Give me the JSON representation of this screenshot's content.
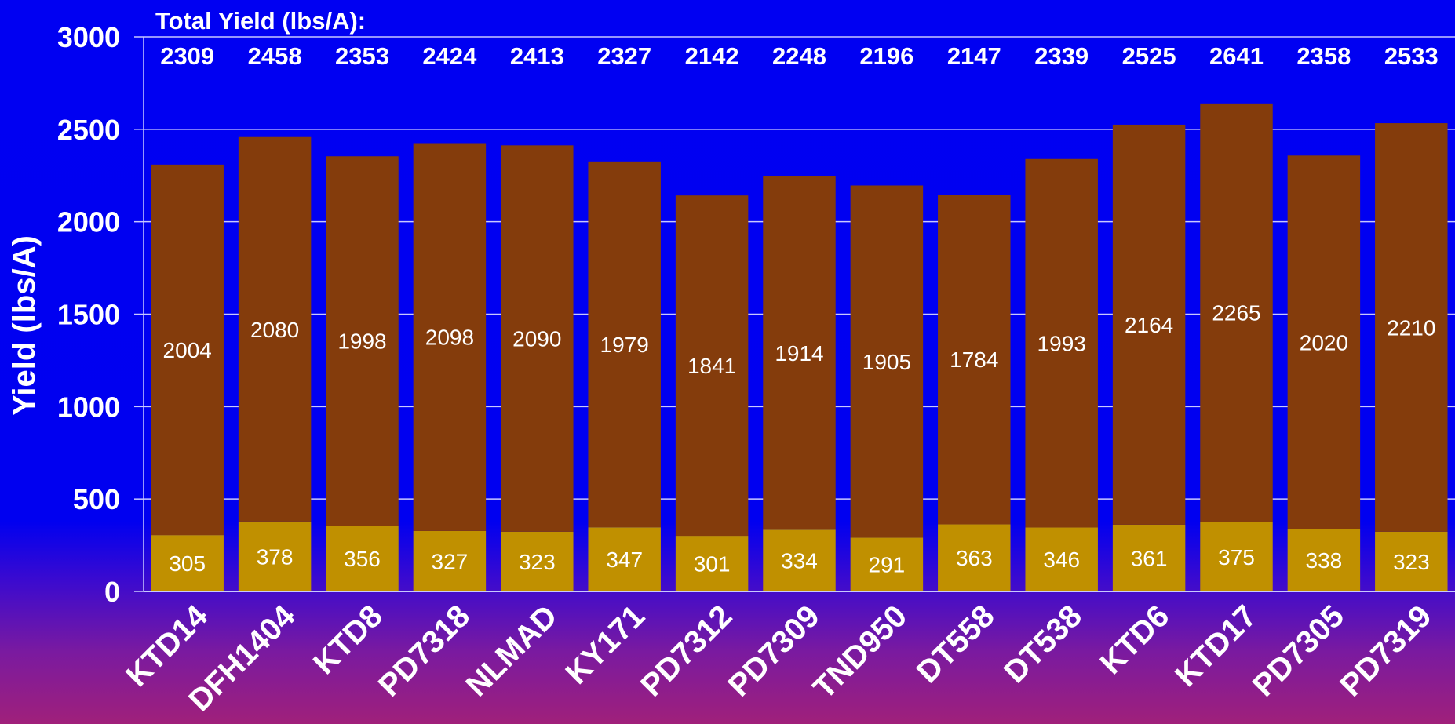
{
  "chart_data": {
    "type": "bar",
    "stacked": true,
    "header": "Total Yield (lbs/A):",
    "ylabel": "Yield (lbs/A)",
    "xlabel": "",
    "ylim": [
      0,
      3000
    ],
    "yticks": [
      0,
      500,
      1000,
      1500,
      2000,
      2500,
      3000
    ],
    "grid": true,
    "categories": [
      "KTD14",
      "DFH1404",
      "KTD8",
      "PD7318",
      "NLMAD",
      "KY171",
      "PD7312",
      "PD7309",
      "TND950",
      "DT558",
      "DT538",
      "KTD6",
      "KTD17",
      "PD7305",
      "PD7319"
    ],
    "totals": [
      2309,
      2458,
      2353,
      2424,
      2413,
      2327,
      2142,
      2248,
      2196,
      2147,
      2339,
      2525,
      2641,
      2358,
      2533
    ],
    "series": [
      {
        "values": [
          305,
          378,
          356,
          327,
          323,
          347,
          301,
          334,
          291,
          363,
          346,
          361,
          375,
          338,
          323
        ],
        "color": "#c09000"
      },
      {
        "values": [
          2004,
          2080,
          1998,
          2098,
          2090,
          1979,
          1841,
          1914,
          1905,
          1784,
          1993,
          2164,
          2265,
          2020,
          2210
        ],
        "color": "#843c0c"
      }
    ],
    "colors": {
      "grid": "#c8c8ff",
      "axis": "#c8c8ff",
      "text": "#ffffff"
    }
  }
}
